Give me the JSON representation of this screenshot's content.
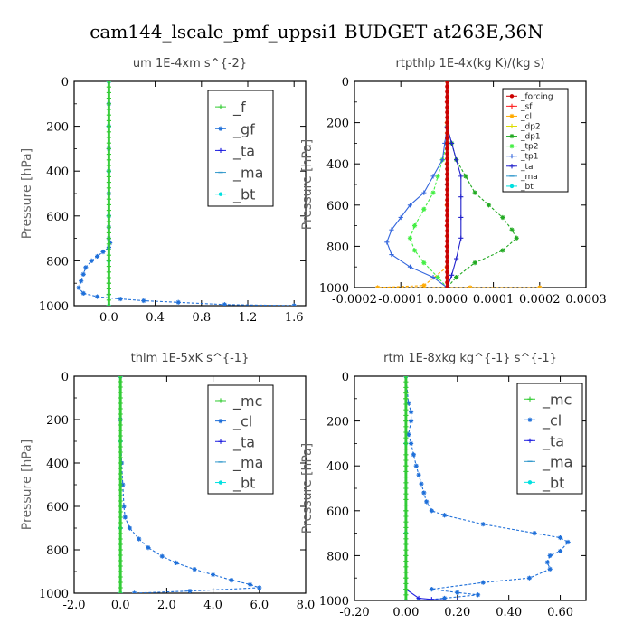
{
  "figure_title": "cam144_lscale_pmf_uppsi1  BUDGET at263E,36N",
  "chart_data": [
    {
      "type": "line",
      "title": "um   1E-4xm  s^{-2}",
      "ylabel": "Pressure [hPa]",
      "ylim": [
        1000,
        0
      ],
      "xlim": [
        -0.3,
        1.7
      ],
      "xtick_labels": [
        "0.0",
        "0.4",
        "0.8",
        "1.2",
        "1.6"
      ],
      "ytick_labels": [
        "0",
        "200",
        "400",
        "600",
        "800",
        "1000"
      ],
      "legend": "top-right",
      "series": [
        {
          "name": "_f",
          "color": "#33cc33",
          "marker": "+",
          "x": [
            0,
            0,
            0,
            0,
            0,
            0,
            0,
            0,
            0,
            0,
            0
          ],
          "y": [
            0,
            100,
            200,
            300,
            400,
            500,
            600,
            700,
            800,
            900,
            1000
          ]
        },
        {
          "name": "_gf",
          "color": "#1e6fd9",
          "marker": "*",
          "x": [
            0,
            0,
            0,
            0,
            0,
            0,
            0,
            0,
            0,
            0.01,
            0.0,
            -0.05,
            -0.1,
            -0.15,
            -0.2,
            -0.22,
            -0.24,
            -0.26,
            -0.22,
            -0.1,
            0.1,
            0.3,
            0.6,
            1.0,
            1.6
          ],
          "y": [
            0,
            100,
            200,
            300,
            400,
            500,
            600,
            650,
            700,
            720,
            740,
            760,
            780,
            800,
            830,
            860,
            890,
            920,
            945,
            960,
            970,
            978,
            985,
            995,
            1000
          ]
        },
        {
          "name": "_ta",
          "color": "#1f1fe0",
          "marker": "+",
          "x": [
            0,
            0,
            0,
            0,
            0,
            0,
            0
          ],
          "y": [
            0,
            200,
            400,
            600,
            800,
            950,
            1000
          ]
        },
        {
          "name": "_ma",
          "color": "#3399cc",
          "marker": "-",
          "x": [
            0,
            0,
            0,
            0,
            0,
            0,
            0
          ],
          "y": [
            0,
            200,
            400,
            600,
            800,
            950,
            1000
          ]
        },
        {
          "name": "_bt",
          "color": "#00e0e0",
          "marker": "o",
          "x": [
            0,
            0,
            0,
            0,
            0,
            0
          ],
          "y": [
            0,
            200,
            400,
            600,
            800,
            1000
          ]
        }
      ]
    },
    {
      "type": "line",
      "title": "rtpthlp   1E-4x(kg K)/(kg s)",
      "ylabel": "Pressure [hPa]",
      "ylim": [
        1000,
        0
      ],
      "xlim": [
        -0.0002,
        0.0003
      ],
      "xtick_labels": [
        "-0.0002",
        "-0.0001",
        "0.0000",
        "0.0001",
        "0.0002",
        "0.0003"
      ],
      "ytick_labels": [
        "0",
        "200",
        "400",
        "600",
        "800",
        "1000"
      ],
      "legend": "top-right",
      "series": [
        {
          "name": "_forcing",
          "color": "#cc0000",
          "marker": "o",
          "x": [
            0,
            0,
            0,
            0,
            0,
            0,
            0,
            0,
            0,
            0,
            0
          ],
          "y": [
            0,
            100,
            200,
            300,
            400,
            500,
            600,
            700,
            800,
            900,
            1000
          ]
        },
        {
          "name": "_sf",
          "color": "#ff2020",
          "marker": "+",
          "x": [
            0,
            0,
            0,
            0,
            0,
            0,
            0,
            0,
            0,
            0,
            0
          ],
          "y": [
            0,
            100,
            200,
            300,
            400,
            500,
            600,
            700,
            800,
            900,
            1000
          ]
        },
        {
          "name": "_cl",
          "color": "#ffaa00",
          "marker": "*",
          "x": [
            0,
            0,
            0,
            0,
            0,
            -5e-05,
            -0.00015,
            5e-05,
            0.0002
          ],
          "y": [
            0,
            200,
            400,
            600,
            900,
            990,
            1000,
            1000,
            1000
          ]
        },
        {
          "name": "_dp2",
          "color": "#dddd00",
          "marker": "+",
          "x": [
            0,
            0,
            0,
            0,
            0
          ],
          "y": [
            0,
            250,
            500,
            750,
            1000
          ]
        },
        {
          "name": "_dp1",
          "color": "#22aa22",
          "marker": "*",
          "x": [
            0,
            1e-05,
            2e-05,
            4e-05,
            6e-05,
            9e-05,
            0.00012,
            0.00014,
            0.00015,
            0.00012,
            6e-05,
            2e-05,
            0
          ],
          "y": [
            220,
            300,
            380,
            460,
            540,
            600,
            660,
            720,
            760,
            820,
            880,
            950,
            1000
          ]
        },
        {
          "name": "_tp2",
          "color": "#44ee44",
          "marker": "*",
          "x": [
            0,
            -1e-05,
            -2e-05,
            -3e-05,
            -5e-05,
            -7e-05,
            -8e-05,
            -7e-05,
            -5e-05,
            -2e-05,
            0
          ],
          "y": [
            300,
            380,
            460,
            540,
            620,
            700,
            760,
            820,
            880,
            950,
            1000
          ]
        },
        {
          "name": "_tp1",
          "color": "#3366dd",
          "marker": "+",
          "x": [
            0,
            -5e-06,
            -1e-05,
            -3e-05,
            -5e-05,
            -8e-05,
            -0.0001,
            -0.00012,
            -0.00013,
            -0.00012,
            -8e-05,
            -3e-05,
            0
          ],
          "y": [
            220,
            300,
            380,
            460,
            540,
            600,
            660,
            720,
            780,
            840,
            900,
            950,
            1000
          ]
        },
        {
          "name": "_ta",
          "color": "#2222cc",
          "marker": "+",
          "x": [
            0,
            1e-05,
            2e-05,
            3e-05,
            3e-05,
            3e-05,
            3e-05,
            2e-05,
            1e-05,
            0
          ],
          "y": [
            220,
            300,
            380,
            460,
            560,
            660,
            760,
            860,
            940,
            1000
          ]
        },
        {
          "name": "_ma",
          "color": "#3399cc",
          "marker": "-",
          "x": [
            0,
            0,
            0
          ],
          "y": [
            0,
            500,
            1000
          ]
        },
        {
          "name": "_bt",
          "color": "#00e0e0",
          "marker": "o",
          "x": [
            0,
            0,
            0
          ],
          "y": [
            0,
            500,
            1000
          ]
        }
      ]
    },
    {
      "type": "line",
      "title": "thlm   1E-5xK  s^{-1}",
      "ylabel": "Pressure [hPa]",
      "ylim": [
        1000,
        0
      ],
      "xlim": [
        -2.0,
        8.0
      ],
      "xtick_labels": [
        "-2.0",
        "0.0",
        "2.0",
        "4.0",
        "6.0",
        "8.0"
      ],
      "ytick_labels": [
        "0",
        "200",
        "400",
        "600",
        "800",
        "1000"
      ],
      "legend": "top-right",
      "series": [
        {
          "name": "_mc",
          "color": "#33cc33",
          "marker": "+",
          "x": [
            0,
            0,
            0,
            0,
            0,
            0,
            0,
            0,
            0,
            0,
            0
          ],
          "y": [
            0,
            100,
            200,
            300,
            400,
            500,
            600,
            700,
            800,
            900,
            1000
          ]
        },
        {
          "name": "_cl",
          "color": "#1e6fd9",
          "marker": "*",
          "x": [
            0,
            0,
            0.05,
            0.1,
            0.15,
            0.2,
            0.4,
            0.8,
            1.2,
            1.8,
            2.4,
            3.2,
            4.0,
            4.8,
            5.6,
            6.0,
            3.0,
            0.6
          ],
          "y": [
            0,
            200,
            400,
            500,
            600,
            650,
            700,
            750,
            790,
            830,
            860,
            890,
            915,
            940,
            960,
            975,
            990,
            1000
          ]
        },
        {
          "name": "_ta",
          "color": "#1f1fe0",
          "marker": "+",
          "x": [
            0,
            0,
            0,
            0
          ],
          "y": [
            0,
            300,
            700,
            1000
          ]
        },
        {
          "name": "_ma",
          "color": "#3399cc",
          "marker": "-",
          "x": [
            0,
            0,
            0,
            0
          ],
          "y": [
            0,
            300,
            700,
            1000
          ]
        },
        {
          "name": "_bt",
          "color": "#00e0e0",
          "marker": "o",
          "x": [
            0,
            0,
            0,
            0
          ],
          "y": [
            0,
            300,
            700,
            1000
          ]
        }
      ]
    },
    {
      "type": "line",
      "title": "rtm   1E-8xkg  kg^{-1}  s^{-1}",
      "ylabel": "Pressure [hPa]",
      "ylim": [
        1000,
        0
      ],
      "xlim": [
        -0.2,
        0.7
      ],
      "xtick_labels": [
        "-0.20",
        "0.00",
        "0.20",
        "0.40",
        "0.60"
      ],
      "ytick_labels": [
        "0",
        "200",
        "400",
        "600",
        "800",
        "1000"
      ],
      "legend": "top-right",
      "series": [
        {
          "name": "_mc",
          "color": "#33cc33",
          "marker": "+",
          "x": [
            0,
            0,
            0,
            0,
            0,
            0,
            0,
            0,
            0,
            0,
            0
          ],
          "y": [
            0,
            100,
            200,
            300,
            400,
            500,
            600,
            700,
            800,
            900,
            1000
          ]
        },
        {
          "name": "_cl",
          "color": "#1e6fd9",
          "marker": "*",
          "x": [
            0,
            0.01,
            0.02,
            0.02,
            0.01,
            0.02,
            0.03,
            0.04,
            0.05,
            0.06,
            0.07,
            0.08,
            0.1,
            0.15,
            0.3,
            0.5,
            0.6,
            0.63,
            0.6,
            0.56,
            0.55,
            0.56,
            0.48,
            0.3,
            0.1,
            0.2,
            0.28,
            0.15,
            0.05
          ],
          "y": [
            0,
            120,
            160,
            200,
            260,
            300,
            350,
            400,
            440,
            480,
            520,
            560,
            600,
            620,
            660,
            700,
            720,
            740,
            780,
            800,
            830,
            860,
            900,
            920,
            950,
            965,
            975,
            990,
            1000
          ]
        },
        {
          "name": "_ta",
          "color": "#1f1fe0",
          "marker": "+",
          "x": [
            0,
            0,
            0,
            0,
            0.05,
            0.1,
            0.2
          ],
          "y": [
            0,
            300,
            700,
            950,
            990,
            995,
            1000
          ]
        },
        {
          "name": "_ma",
          "color": "#3399cc",
          "marker": "-",
          "x": [
            0,
            0,
            0,
            0
          ],
          "y": [
            0,
            300,
            700,
            1000
          ]
        },
        {
          "name": "_bt",
          "color": "#00e0e0",
          "marker": "o",
          "x": [
            0,
            0,
            0,
            0
          ],
          "y": [
            0,
            300,
            700,
            1000
          ]
        }
      ]
    }
  ]
}
